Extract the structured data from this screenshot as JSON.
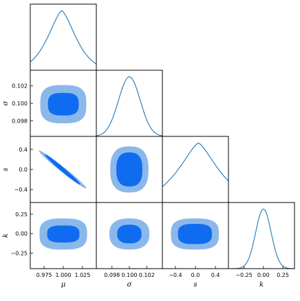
{
  "chart_data": {
    "type": "corner",
    "title": "",
    "parameters": [
      {
        "name": "μ",
        "range": [
          0.957,
          1.043
        ],
        "ticks": [
          "0.975",
          "1.000",
          "1.025"
        ],
        "tick_values": [
          0.975,
          1.0,
          1.025
        ],
        "marginal": {
          "center": 0.998,
          "width": 0.0165,
          "shape": 1.5
        }
      },
      {
        "name": "σ",
        "range": [
          0.0962,
          0.1038
        ],
        "ticks": [
          "0.098",
          "0.100",
          "0.102"
        ],
        "tick_values": [
          0.098,
          0.1,
          0.102
        ],
        "marginal": {
          "center": 0.1,
          "width": 0.00125,
          "shape": 2.0
        }
      },
      {
        "name": "s",
        "range": [
          -0.66,
          0.66
        ],
        "ticks": [
          "−0.4",
          "0.0",
          "0.4"
        ],
        "tick_values": [
          -0.4,
          0.0,
          0.4
        ],
        "marginal": {
          "center": 0.06,
          "width": 0.36,
          "shape": 1.4
        }
      },
      {
        "name": "k",
        "range": [
          -0.45,
          0.4
        ],
        "ticks": [
          "−0.25",
          "0.00",
          "0.25"
        ],
        "tick_values": [
          -0.25,
          0.0,
          0.25
        ],
        "marginal": {
          "center": 0.0,
          "width": 0.1,
          "shape": 2.0
        }
      }
    ],
    "contours": [
      {
        "x": "μ",
        "y": "σ",
        "center": [
          1.0,
          0.0999
        ],
        "outer": [
          0.03,
          0.0022
        ],
        "inner": [
          0.02,
          0.0013
        ],
        "rho": 0.0,
        "p": 3.0
      },
      {
        "x": "μ",
        "y": "s",
        "center": [
          0.999,
          -0.0
        ],
        "outer": [
          0.031,
          0.38
        ],
        "inner": [
          0.023,
          0.3
        ],
        "rho": -0.985,
        "p": 2.0
      },
      {
        "x": "σ",
        "y": "s",
        "center": [
          0.1,
          0.0
        ],
        "outer": [
          0.0022,
          0.46
        ],
        "inner": [
          0.0015,
          0.34
        ],
        "rho": 0.0,
        "p": 2.6
      },
      {
        "x": "μ",
        "y": "k",
        "center": [
          1.0,
          -0.005
        ],
        "outer": [
          0.031,
          0.2
        ],
        "inner": [
          0.021,
          0.11
        ],
        "rho": 0.0,
        "p": 3.0
      },
      {
        "x": "σ",
        "y": "k",
        "center": [
          0.1,
          -0.005
        ],
        "outer": [
          0.0023,
          0.2
        ],
        "inner": [
          0.0014,
          0.12
        ],
        "rho": 0.0,
        "p": 2.5
      },
      {
        "x": "s",
        "y": "k",
        "center": [
          -0.01,
          -0.005
        ],
        "outer": [
          0.48,
          0.2
        ],
        "inner": [
          0.34,
          0.13
        ],
        "rho": 0.0,
        "p": 3.0
      }
    ],
    "colors": {
      "outer": "#8bb8eb",
      "inner": "#0f6cf0",
      "line": "#1f77b4",
      "axes": "#000000"
    },
    "grid": false,
    "legend": "none"
  }
}
